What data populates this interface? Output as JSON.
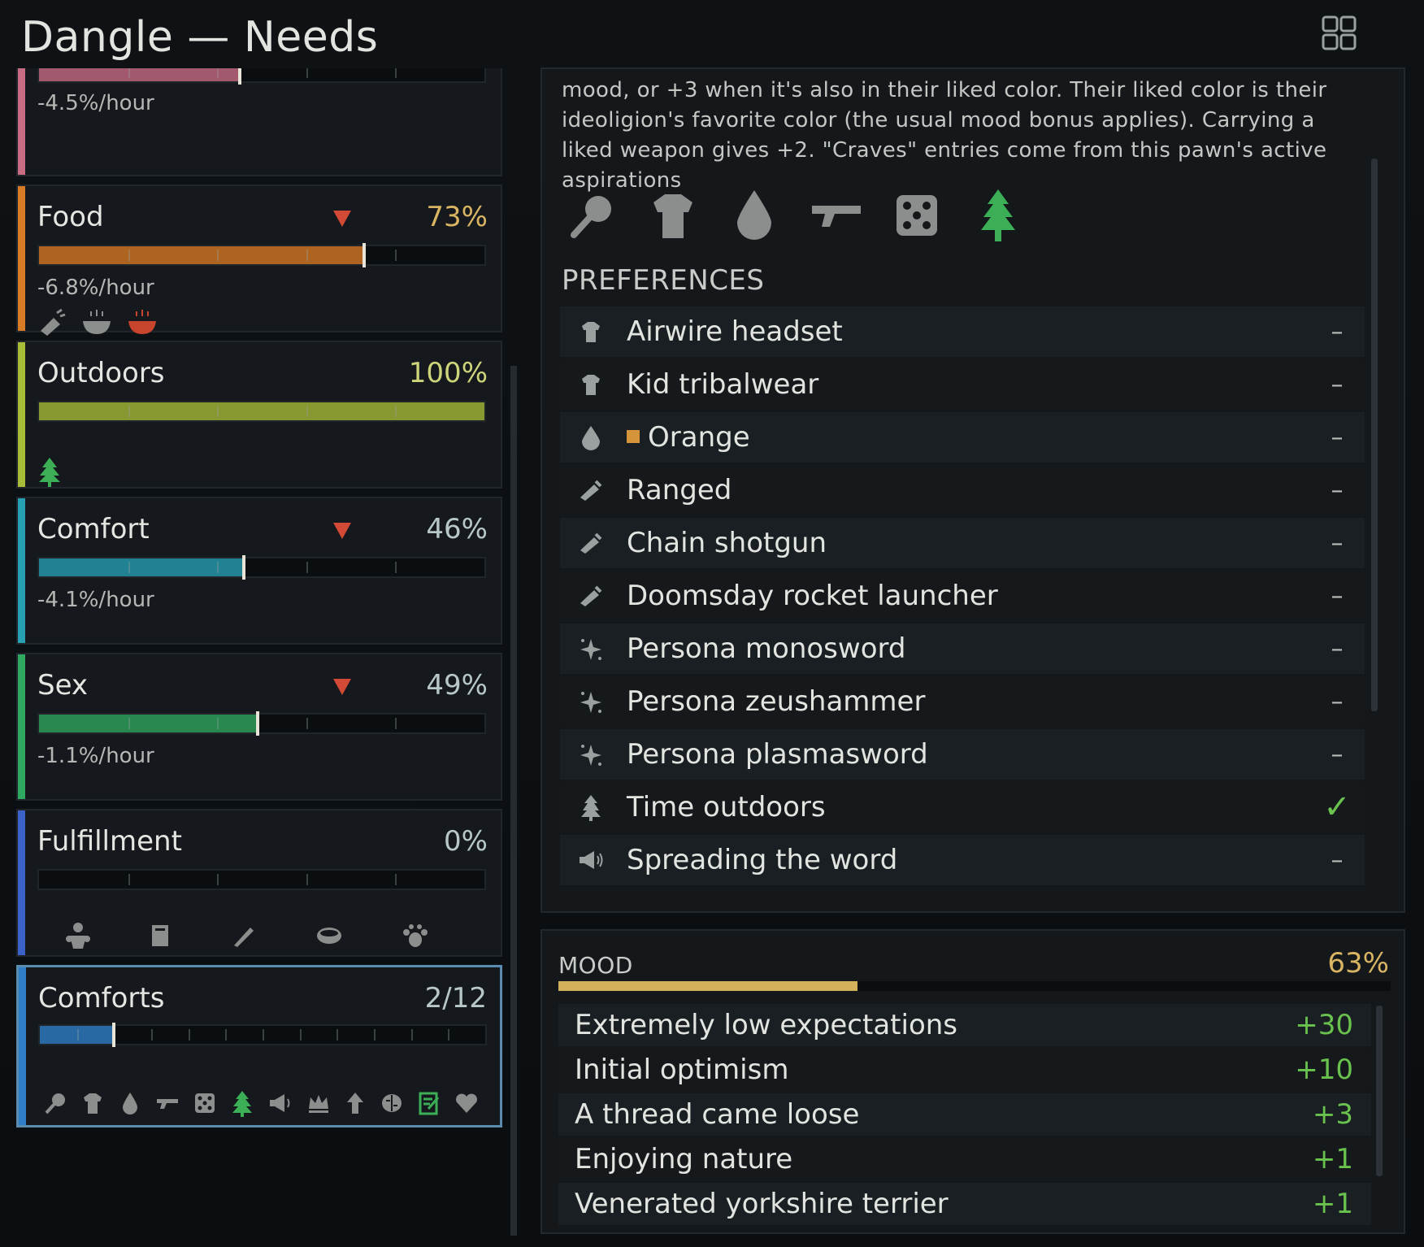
{
  "window": {
    "title": "Dangle — Needs"
  },
  "colors": {
    "food": "#d77b24",
    "outdoors": "#a8bc38",
    "comfort": "#27a0b4",
    "sex": "#2fa860",
    "fulfillment": "#3a62c8",
    "comforts": "#2f7fc8",
    "top": "#c86c84"
  },
  "needs": [
    {
      "key": "top",
      "rate": "-4.5%/hour",
      "level": 0.45
    },
    {
      "key": "food",
      "name": "Food",
      "pct": "73%",
      "rate": "-6.8%/hour",
      "level": 0.73,
      "trend": "down",
      "icons": [
        "meal-simple-icon",
        "meal-fine-icon",
        "meal-lavish-icon"
      ]
    },
    {
      "key": "outdoors",
      "name": "Outdoors",
      "pct": "100%",
      "level": 1.0,
      "icons": [
        "tree-icon"
      ]
    },
    {
      "key": "comfort",
      "name": "Comfort",
      "pct": "46%",
      "rate": "-4.1%/hour",
      "level": 0.46,
      "trend": "down"
    },
    {
      "key": "sex",
      "name": "Sex",
      "pct": "49%",
      "rate": "-1.1%/hour",
      "level": 0.49,
      "trend": "down"
    },
    {
      "key": "fulfillment",
      "name": "Fulfillment",
      "pct": "0%",
      "level": 0.0,
      "icons": [
        "family-icon",
        "book-icon",
        "pen-icon",
        "bowl-icon",
        "paw-icon"
      ]
    },
    {
      "key": "comforts",
      "name": "Comforts",
      "pct": "2/12",
      "level": 0.1667,
      "icons": [
        "club-icon",
        "shirt-icon",
        "drop-icon",
        "gun-icon",
        "dice-icon",
        "tree-icon",
        "megaphone-icon",
        "crown-icon",
        "arrow-up-icon",
        "brain-icon",
        "note-icon",
        "heart-icon"
      ]
    }
  ],
  "preferences": {
    "description": "mood, or +3 when it's also in their liked color. Their liked color is their ideoligion's favorite color (the usual mood bonus applies). Carrying a liked weapon gives +2. \"Craves\" entries come from this pawn's active aspirations",
    "category_icons": [
      "club-icon",
      "shirt-icon",
      "drop-icon",
      "gun-icon",
      "dice-icon",
      "tree-icon"
    ],
    "heading": "PREFERENCES",
    "items": [
      {
        "icon": "shirt-icon",
        "label": "Airwire headset",
        "value": "–"
      },
      {
        "icon": "shirt-icon",
        "label": "Kid tribalwear",
        "value": "–"
      },
      {
        "icon": "drop-icon",
        "label": "Orange",
        "value": "–",
        "swatch": "#d6943a"
      },
      {
        "icon": "weapon-icon",
        "label": "Ranged",
        "value": "–"
      },
      {
        "icon": "weapon-icon",
        "label": "Chain shotgun",
        "value": "–"
      },
      {
        "icon": "weapon-icon",
        "label": "Doomsday rocket launcher",
        "value": "–"
      },
      {
        "icon": "sparkle-icon",
        "label": "Persona monosword",
        "value": "–"
      },
      {
        "icon": "sparkle-icon",
        "label": "Persona zeushammer",
        "value": "–"
      },
      {
        "icon": "sparkle-icon",
        "label": "Persona plasmasword",
        "value": "–"
      },
      {
        "icon": "tree-icon",
        "label": "Time outdoors",
        "value": "✓"
      },
      {
        "icon": "megaphone-icon",
        "label": "Spreading the word",
        "value": "–"
      }
    ]
  },
  "mood": {
    "title": "MOOD",
    "pct": "63%",
    "level": 0.63,
    "thoughts": [
      {
        "label": "Extremely low expectations",
        "value": "+30"
      },
      {
        "label": "Initial optimism",
        "value": "+10"
      },
      {
        "label": "A thread came loose",
        "value": "+3"
      },
      {
        "label": "Enjoying nature",
        "value": "+1"
      },
      {
        "label": "Venerated yorkshire terrier",
        "value": "+1"
      }
    ]
  }
}
